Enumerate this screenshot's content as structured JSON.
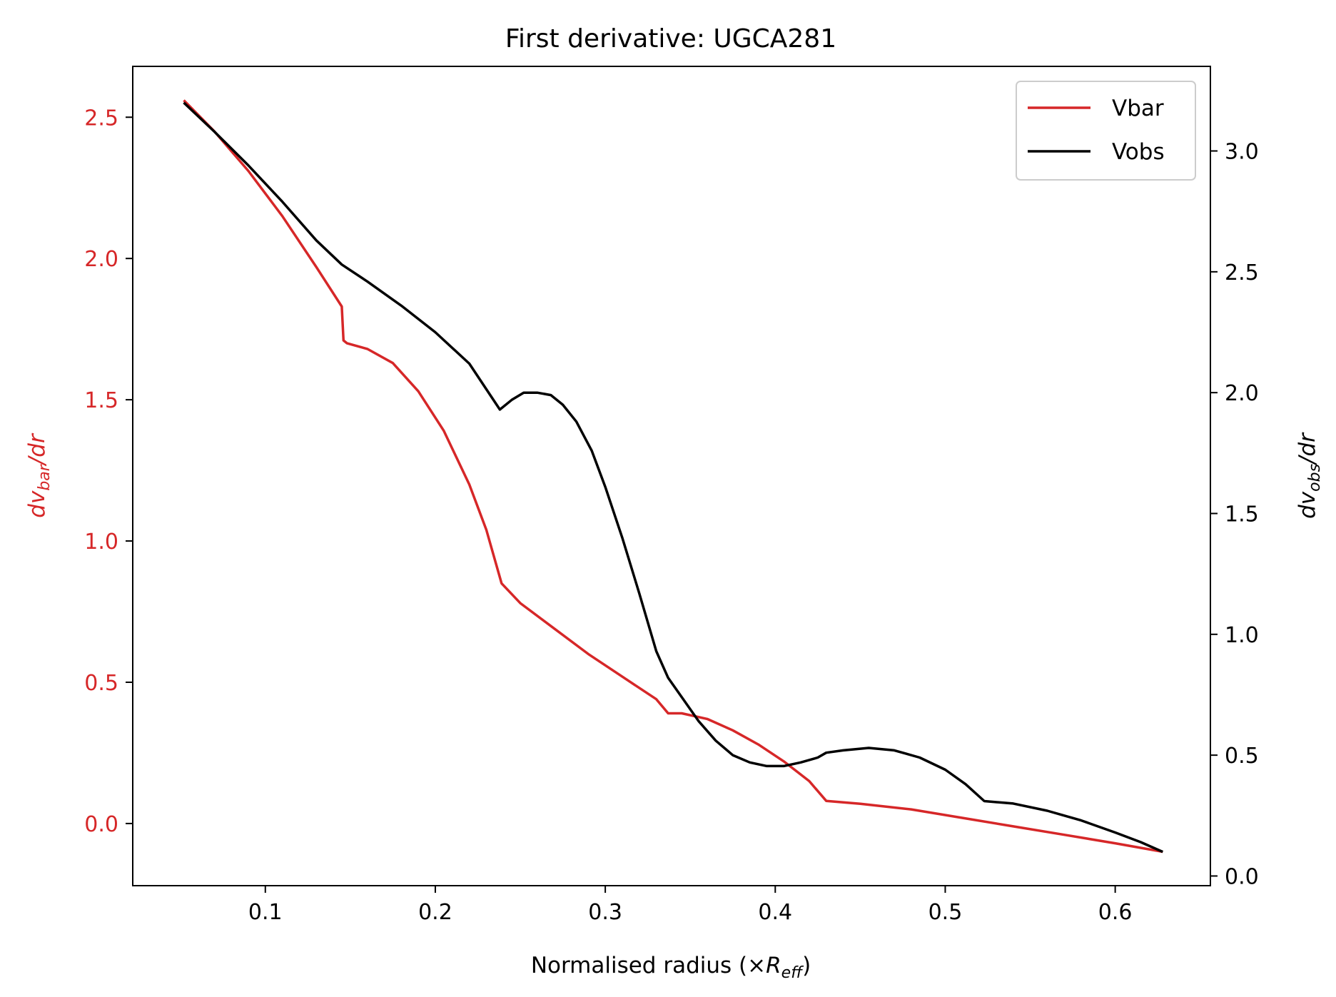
{
  "colors": {
    "vbar": "#d62728",
    "vobs": "#000000",
    "axis": "#000000"
  },
  "chart_data": {
    "type": "line",
    "title": "First derivative: UGCA281",
    "xlabel": {
      "main": "Normalised radius (×",
      "symbol": "R",
      "sub": "eff",
      "close": ")"
    },
    "ylabel_left": {
      "pre": "dv",
      "sub": "bar",
      "post": "/dr"
    },
    "ylabel_right": {
      "pre": "dv",
      "sub": "obs",
      "post": "/dr"
    },
    "xlim": [
      0.022,
      0.656
    ],
    "ylim_left": [
      -0.22,
      2.68
    ],
    "ylim_right": [
      -0.04,
      3.35
    ],
    "xticks": [
      0.1,
      0.2,
      0.3,
      0.4,
      0.5,
      0.6
    ],
    "xtick_labels": [
      "0.1",
      "0.2",
      "0.3",
      "0.4",
      "0.5",
      "0.6"
    ],
    "yticks_left": [
      0.0,
      0.5,
      1.0,
      1.5,
      2.0,
      2.5
    ],
    "ytick_labels_left": [
      "0.0",
      "0.5",
      "1.0",
      "1.5",
      "2.0",
      "2.5"
    ],
    "yticks_right": [
      0.0,
      0.5,
      1.0,
      1.5,
      2.0,
      2.5,
      3.0
    ],
    "ytick_labels_right": [
      "0.0",
      "0.5",
      "1.0",
      "1.5",
      "2.0",
      "2.5",
      "3.0"
    ],
    "legend_position": "upper right",
    "grid": false,
    "series": [
      {
        "name": "Vbar",
        "axis": "left",
        "color": "#d62728",
        "points": [
          [
            0.052,
            2.56
          ],
          [
            0.07,
            2.45
          ],
          [
            0.09,
            2.31
          ],
          [
            0.11,
            2.15
          ],
          [
            0.13,
            1.97
          ],
          [
            0.145,
            1.83
          ],
          [
            0.146,
            1.71
          ],
          [
            0.148,
            1.7
          ],
          [
            0.16,
            1.68
          ],
          [
            0.175,
            1.63
          ],
          [
            0.19,
            1.53
          ],
          [
            0.205,
            1.39
          ],
          [
            0.22,
            1.2
          ],
          [
            0.23,
            1.04
          ],
          [
            0.239,
            0.85
          ],
          [
            0.25,
            0.78
          ],
          [
            0.27,
            0.69
          ],
          [
            0.29,
            0.6
          ],
          [
            0.31,
            0.52
          ],
          [
            0.33,
            0.44
          ],
          [
            0.337,
            0.39
          ],
          [
            0.345,
            0.39
          ],
          [
            0.36,
            0.37
          ],
          [
            0.375,
            0.33
          ],
          [
            0.39,
            0.28
          ],
          [
            0.405,
            0.22
          ],
          [
            0.42,
            0.15
          ],
          [
            0.43,
            0.08
          ],
          [
            0.45,
            0.07
          ],
          [
            0.48,
            0.05
          ],
          [
            0.51,
            0.02
          ],
          [
            0.54,
            -0.01
          ],
          [
            0.57,
            -0.04
          ],
          [
            0.6,
            -0.07
          ],
          [
            0.628,
            -0.1
          ]
        ]
      },
      {
        "name": "Vobs",
        "axis": "right",
        "color": "#000000",
        "points": [
          [
            0.052,
            3.2
          ],
          [
            0.07,
            3.08
          ],
          [
            0.09,
            2.94
          ],
          [
            0.11,
            2.79
          ],
          [
            0.13,
            2.63
          ],
          [
            0.145,
            2.53
          ],
          [
            0.16,
            2.46
          ],
          [
            0.18,
            2.36
          ],
          [
            0.2,
            2.25
          ],
          [
            0.22,
            2.12
          ],
          [
            0.238,
            1.93
          ],
          [
            0.245,
            1.97
          ],
          [
            0.252,
            2.0
          ],
          [
            0.26,
            2.0
          ],
          [
            0.268,
            1.99
          ],
          [
            0.275,
            1.95
          ],
          [
            0.283,
            1.88
          ],
          [
            0.292,
            1.76
          ],
          [
            0.3,
            1.61
          ],
          [
            0.31,
            1.4
          ],
          [
            0.32,
            1.17
          ],
          [
            0.33,
            0.93
          ],
          [
            0.337,
            0.82
          ],
          [
            0.345,
            0.74
          ],
          [
            0.355,
            0.64
          ],
          [
            0.365,
            0.56
          ],
          [
            0.375,
            0.5
          ],
          [
            0.385,
            0.47
          ],
          [
            0.395,
            0.455
          ],
          [
            0.405,
            0.455
          ],
          [
            0.415,
            0.47
          ],
          [
            0.425,
            0.49
          ],
          [
            0.43,
            0.51
          ],
          [
            0.44,
            0.52
          ],
          [
            0.455,
            0.53
          ],
          [
            0.47,
            0.52
          ],
          [
            0.485,
            0.49
          ],
          [
            0.5,
            0.44
          ],
          [
            0.512,
            0.38
          ],
          [
            0.523,
            0.31
          ],
          [
            0.54,
            0.3
          ],
          [
            0.56,
            0.27
          ],
          [
            0.58,
            0.23
          ],
          [
            0.6,
            0.18
          ],
          [
            0.615,
            0.14
          ],
          [
            0.628,
            0.1
          ]
        ]
      }
    ]
  }
}
